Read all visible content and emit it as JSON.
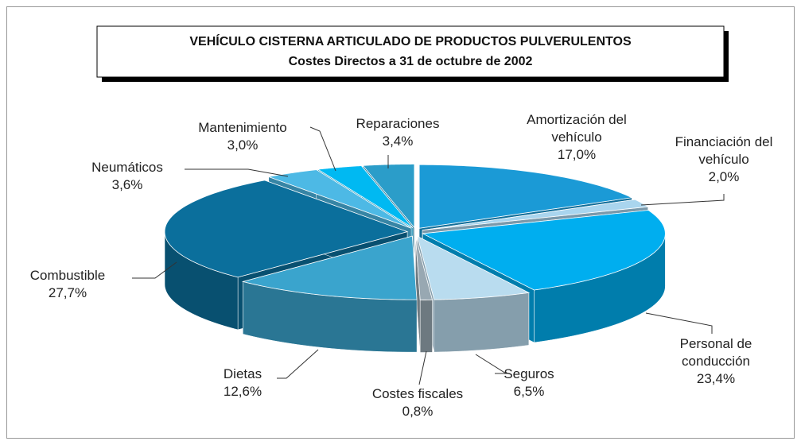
{
  "chart_data": {
    "type": "pie3d",
    "title": "VEHÍCULO CISTERNA ARTICULADO DE PRODUCTOS PULVERULENTOS",
    "subtitle": "Costes Directos a 31 de octubre de 2002",
    "categories": [
      "Amortización del vehículo",
      "Financiación del vehículo",
      "Personal de conducción",
      "Seguros",
      "Costes fiscales",
      "Dietas",
      "Combustible",
      "Neumáticos",
      "Mantenimiento",
      "Reparaciones"
    ],
    "values": [
      17.0,
      2.0,
      23.4,
      6.5,
      0.8,
      12.6,
      27.7,
      3.6,
      3.0,
      3.4
    ],
    "value_labels": [
      "17,0%",
      "2,0%",
      "23,4%",
      "6,5%",
      "0,8%",
      "12,6%",
      "27,7%",
      "3,6%",
      "3,0%",
      "3,4%"
    ],
    "colors": [
      "#1b9ad6",
      "#a9d5ee",
      "#00aeef",
      "#b9dcef",
      "#98a8b2",
      "#3aa4cd",
      "#0b6f9c",
      "#4db9e5",
      "#00b9f2",
      "#2b9dc9"
    ]
  }
}
